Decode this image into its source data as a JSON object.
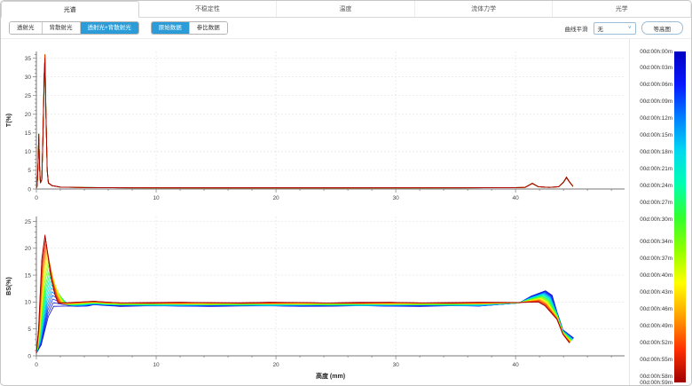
{
  "tabs": [
    {
      "label": "光谱",
      "active": true
    },
    {
      "label": "不稳定性",
      "active": false
    },
    {
      "label": "温度",
      "active": false
    },
    {
      "label": "流体力学",
      "active": false
    },
    {
      "label": "光学",
      "active": false
    }
  ],
  "toolbar": {
    "display_modes": [
      {
        "label": "透射光",
        "active": false
      },
      {
        "label": "背散射光",
        "active": false
      },
      {
        "label": "透射光+背散射光",
        "active": true
      }
    ],
    "data_modes": [
      {
        "label": "原始数据",
        "active": true
      },
      {
        "label": "参比数据",
        "active": false
      }
    ],
    "smoothing": {
      "label": "曲线平滑",
      "value": "无"
    },
    "contour_button_label": "等高图"
  },
  "colors": {
    "accent": "#2b9cd8",
    "grid": "#dcdcdc",
    "axis": "#707070",
    "text": "#3c3c3c",
    "colormap": [
      "#0000c0",
      "#0818ff",
      "#0080ff",
      "#00d8f0",
      "#00ffb0",
      "#30ff30",
      "#90ff00",
      "#ffff00",
      "#ffa000",
      "#ff3000",
      "#a00000"
    ]
  },
  "legend": {
    "entries": [
      {
        "minutes": 0,
        "label": "00d:00h:00m"
      },
      {
        "minutes": 3,
        "label": "00d:00h:03m"
      },
      {
        "minutes": 6,
        "label": "00d:00h:06m"
      },
      {
        "minutes": 9,
        "label": "00d:00h:09m"
      },
      {
        "minutes": 12,
        "label": "00d:00h:12m"
      },
      {
        "minutes": 15,
        "label": "00d:00h:15m"
      },
      {
        "minutes": 18,
        "label": "00d:00h:18m"
      },
      {
        "minutes": 21,
        "label": "00d:00h:21m"
      },
      {
        "minutes": 24,
        "label": "00d:00h:24m"
      },
      {
        "minutes": 27,
        "label": "00d:00h:27m"
      },
      {
        "minutes": 30,
        "label": "00d:00h:30m"
      },
      {
        "minutes": 34,
        "label": "00d:00h:34m"
      },
      {
        "minutes": 37,
        "label": "00d:00h:37m"
      },
      {
        "minutes": 40,
        "label": "00d:00h:40m"
      },
      {
        "minutes": 43,
        "label": "00d:00h:43m"
      },
      {
        "minutes": 46,
        "label": "00d:00h:46m"
      },
      {
        "minutes": 49,
        "label": "00d:00h:49m"
      },
      {
        "minutes": 52,
        "label": "00d:00h:52m"
      },
      {
        "minutes": 55,
        "label": "00d:00h:55m"
      },
      {
        "minutes": 58,
        "label": "00d:00h:58m"
      },
      {
        "minutes": 59,
        "label": "00d:00h:59m"
      }
    ],
    "total_minutes": 59
  },
  "chart_data": [
    {
      "type": "line",
      "id": "transmission",
      "ylabel": "T(%)",
      "xlabel": "",
      "xlim": [
        0,
        49.1
      ],
      "ylim": [
        0,
        36.8
      ],
      "xticks": [
        0,
        10,
        20,
        30,
        40
      ],
      "yticks": [
        0,
        5,
        10,
        15,
        20,
        25,
        30,
        35
      ],
      "x_minor_step": 2,
      "y_minor_step": 1,
      "grid": true,
      "n_scans": 21,
      "profile": [
        [
          0,
          0.3
        ],
        [
          0.07,
          0.8
        ],
        [
          0.13,
          6
        ],
        [
          0.2,
          14.5
        ],
        [
          0.27,
          6
        ],
        [
          0.33,
          1.6
        ],
        [
          0.45,
          2.5
        ],
        [
          0.55,
          14
        ],
        [
          0.65,
          30
        ],
        [
          0.72,
          35
        ],
        [
          0.8,
          20
        ],
        [
          0.9,
          5
        ],
        [
          1,
          1.6
        ],
        [
          1.3,
          0.9
        ],
        [
          2,
          0.5
        ],
        [
          4,
          0.38
        ],
        [
          8,
          0.33
        ],
        [
          15,
          0.32
        ],
        [
          25,
          0.32
        ],
        [
          35,
          0.33
        ],
        [
          40,
          0.36
        ],
        [
          40.8,
          0.45
        ],
        [
          41.4,
          1.5
        ],
        [
          41.9,
          0.6
        ],
        [
          42.8,
          0.45
        ],
        [
          43.6,
          0.6
        ],
        [
          44,
          1.8
        ],
        [
          44.25,
          3.1
        ],
        [
          44.5,
          1.9
        ],
        [
          44.8,
          0.7
        ]
      ],
      "notes": "21 nearly identical overlapping scans; sharp peaks ~14.5% at 0.2mm and ~35% at 0.72mm; flat ~0.3%; small peak ~1.5% at 41.4mm; peak ~3% at 44.3mm"
    },
    {
      "type": "line",
      "id": "backscattering",
      "ylabel": "BS(%)",
      "xlabel": "高度 (mm)",
      "xlim": [
        0,
        49.1
      ],
      "ylim": [
        0,
        25.9
      ],
      "xticks": [
        0,
        10,
        20,
        30,
        40
      ],
      "yticks": [
        0,
        5,
        10,
        15,
        20,
        25
      ],
      "x_minor_step": 2,
      "y_minor_step": 1,
      "grid": true,
      "n_scans": 21,
      "model": {
        "start_y": 0.5,
        "rise_x": [
          1.0,
          0.45
        ],
        "left_peak_x": [
          1.45,
          0.72
        ],
        "left_peak_y": [
          9.2,
          22.5
        ],
        "converge_x": [
          3.4,
          1.8
        ],
        "flat_y": [
          9.25,
          9.9
        ],
        "right_bump_x": [
          42.5,
          41.9
        ],
        "right_bump_y": [
          12.1,
          10.0
        ],
        "end_x": [
          44.85,
          44.5
        ],
        "end_y": [
          3.3,
          2.4
        ]
      },
      "notes": "value pairs are [first scan 00m, last scan 59m], linearly interpolated over time; scans colored blue(early) to red(late); left peak grows 9.2->22.5%, flat ~9.5%, right bump shrinks 12.1->10%, tail drops to ~2.4-3.3% at ~44.7mm"
    }
  ]
}
